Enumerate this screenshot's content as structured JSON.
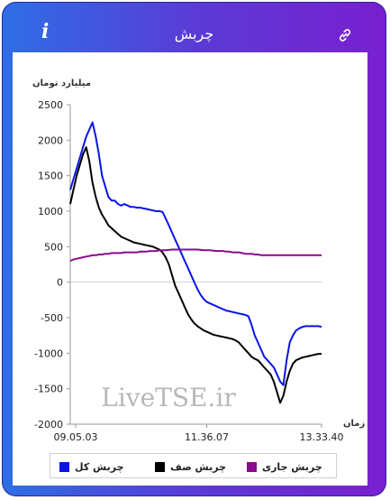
{
  "header": {
    "title": "چربش",
    "info_icon": "i",
    "link_icon_name": "link-icon"
  },
  "chart_data": {
    "type": "line",
    "ylabel": "میلیارد تومان",
    "xlabel": "زمان",
    "ylim": [
      -2000,
      2500
    ],
    "yticks": [
      "2500",
      "2000",
      "1500",
      "1000",
      "500",
      "0",
      "-500",
      "-1000",
      "-1500",
      "-2000"
    ],
    "xticks": [
      "09.05.03",
      "11.36.07",
      "13.33.40"
    ],
    "watermark": "LiveTSE.ir",
    "series": [
      {
        "name": "چربش کل",
        "color": "#0a14e6",
        "values": [
          1300,
          1450,
          1600,
          1750,
          1900,
          2050,
          2150,
          2250,
          2050,
          1800,
          1500,
          1350,
          1200,
          1150,
          1150,
          1100,
          1080,
          1100,
          1080,
          1060,
          1060,
          1050,
          1050,
          1040,
          1030,
          1020,
          1010,
          1000,
          1000,
          990,
          900,
          800,
          700,
          600,
          500,
          400,
          300,
          200,
          100,
          0,
          -100,
          -180,
          -240,
          -280,
          -300,
          -320,
          -340,
          -360,
          -380,
          -400,
          -410,
          -420,
          -430,
          -440,
          -450,
          -460,
          -480,
          -600,
          -750,
          -850,
          -950,
          -1050,
          -1100,
          -1150,
          -1200,
          -1300,
          -1400,
          -1450,
          -1100,
          -850,
          -750,
          -680,
          -650,
          -630,
          -620,
          -620,
          -620,
          -620,
          -620,
          -630
        ]
      },
      {
        "name": "چربش صف",
        "color": "#000000",
        "values": [
          1100,
          1300,
          1500,
          1650,
          1800,
          1900,
          1700,
          1400,
          1200,
          1050,
          950,
          880,
          800,
          760,
          720,
          680,
          640,
          620,
          600,
          580,
          560,
          550,
          540,
          530,
          520,
          510,
          500,
          480,
          460,
          420,
          350,
          250,
          100,
          -50,
          -150,
          -250,
          -350,
          -450,
          -520,
          -580,
          -620,
          -650,
          -680,
          -700,
          -720,
          -740,
          -750,
          -760,
          -770,
          -780,
          -790,
          -800,
          -820,
          -850,
          -900,
          -950,
          -1000,
          -1050,
          -1080,
          -1100,
          -1150,
          -1200,
          -1250,
          -1300,
          -1400,
          -1550,
          -1700,
          -1600,
          -1400,
          -1250,
          -1150,
          -1100,
          -1080,
          -1060,
          -1050,
          -1040,
          -1030,
          -1020,
          -1010,
          -1010
        ]
      },
      {
        "name": "چربش جاری",
        "color": "#8b0a8b",
        "values": [
          300,
          320,
          330,
          340,
          350,
          360,
          370,
          380,
          380,
          390,
          390,
          400,
          400,
          410,
          410,
          410,
          410,
          420,
          420,
          420,
          420,
          420,
          430,
          430,
          430,
          440,
          440,
          440,
          450,
          450,
          450,
          455,
          460,
          460,
          460,
          460,
          460,
          460,
          460,
          460,
          460,
          455,
          450,
          450,
          450,
          445,
          440,
          440,
          440,
          430,
          430,
          420,
          420,
          420,
          410,
          400,
          400,
          400,
          390,
          390,
          380,
          380,
          380,
          380,
          380,
          380,
          380,
          380,
          380,
          380,
          380,
          380,
          380,
          380,
          380,
          380,
          380,
          380,
          380,
          380
        ]
      }
    ]
  }
}
